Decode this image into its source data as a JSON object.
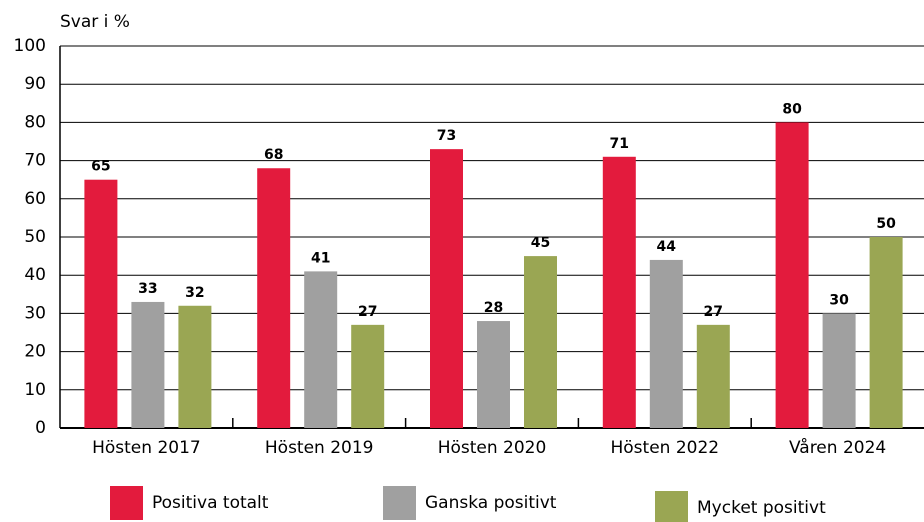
{
  "chart_data": {
    "type": "bar",
    "ylabel": "Svar i %",
    "categories": [
      "Hösten 2017",
      "Hösten 2019",
      "Hösten 2020",
      "Hösten 2022",
      "Våren 2024"
    ],
    "series": [
      {
        "name": "Positiva totalt",
        "color": "#e31b3d",
        "values": [
          65,
          68,
          73,
          71,
          80
        ]
      },
      {
        "name": "Ganska positivt",
        "color": "#a0a0a0",
        "values": [
          33,
          41,
          28,
          44,
          30
        ]
      },
      {
        "name": "Mycket positivt",
        "color": "#9aa653",
        "values": [
          32,
          27,
          45,
          27,
          50
        ]
      }
    ],
    "ylim": [
      0,
      100
    ],
    "yticks": [
      0,
      10,
      20,
      30,
      40,
      50,
      60,
      70,
      80,
      90,
      100
    ],
    "grid": true
  }
}
